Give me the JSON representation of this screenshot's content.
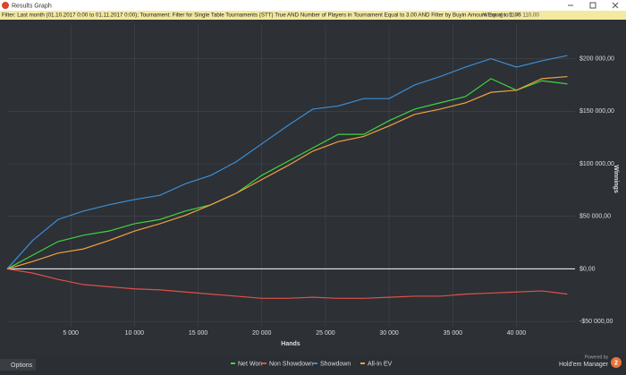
{
  "window": {
    "title": "Results Graph"
  },
  "filter": {
    "text": "Filter: Last month (01.10.2017 0:00 to 01.11.2017 0:00); Tournament: Filter for Single Table Tournaments (STT) True AND Number of Players in Tournament Equal to 3.00 AND Filter by Buyin Amount Equal to 1.00",
    "winnings": "Winnings: $175 110,00"
  },
  "chart_data": {
    "type": "line",
    "x_label": "Hands",
    "y_label": "Winnings",
    "grid": true,
    "x": [
      0,
      2000,
      4000,
      6000,
      8000,
      10000,
      12000,
      14000,
      16000,
      18000,
      20000,
      22000,
      24000,
      26000,
      28000,
      30000,
      32000,
      34000,
      36000,
      38000,
      40000,
      42000,
      44000
    ],
    "series": [
      {
        "name": "Net Won",
        "color": "#3fd43f",
        "values": [
          0,
          13000,
          26000,
          32000,
          36000,
          43000,
          47000,
          55000,
          61000,
          72000,
          89000,
          102000,
          115000,
          128000,
          128000,
          141000,
          152000,
          158000,
          164000,
          181000,
          170000,
          179000,
          176000
        ]
      },
      {
        "name": "Non Showdown",
        "color": "#e0504a",
        "values": [
          0,
          -4000,
          -10000,
          -15000,
          -17000,
          -19000,
          -20000,
          -22000,
          -24000,
          -26000,
          -28000,
          -28000,
          -27000,
          -28000,
          -28000,
          -27000,
          -26000,
          -26000,
          -24000,
          -23000,
          -22000,
          -21000,
          -24000
        ]
      },
      {
        "name": "Showdown",
        "color": "#3a8fd6",
        "values": [
          0,
          27000,
          47000,
          55000,
          61000,
          66000,
          70000,
          81000,
          89000,
          102000,
          119000,
          136000,
          152000,
          155000,
          162000,
          162000,
          175000,
          183000,
          192000,
          200000,
          192000,
          198000,
          203000
        ]
      },
      {
        "name": "All-In EV",
        "color": "#f0a040",
        "values": [
          0,
          7000,
          15000,
          19000,
          27000,
          36000,
          43000,
          51000,
          61000,
          72000,
          85000,
          98000,
          112000,
          121000,
          126000,
          136000,
          147000,
          152000,
          158000,
          168000,
          170000,
          181000,
          183000
        ]
      }
    ],
    "xlim": [
      0,
      44600
    ],
    "xticks": [
      {
        "value": 5000,
        "label": "5 000"
      },
      {
        "value": 10000,
        "label": "10 000"
      },
      {
        "value": 15000,
        "label": "15 000"
      },
      {
        "value": 20000,
        "label": "20 000"
      },
      {
        "value": 25000,
        "label": "25 000"
      },
      {
        "value": 30000,
        "label": "30 000"
      },
      {
        "value": 35000,
        "label": "35 000"
      },
      {
        "value": 40000,
        "label": "40 000"
      }
    ],
    "ylim": [
      -55000,
      232000
    ],
    "yticks": [
      {
        "value": -50000,
        "label": "-$50 000,00"
      },
      {
        "value": 0,
        "label": "$0,00"
      },
      {
        "value": 50000,
        "label": "$50 000,00"
      },
      {
        "value": 100000,
        "label": "$100 000,00"
      },
      {
        "value": 150000,
        "label": "$150 000,00"
      },
      {
        "value": 200000,
        "label": "$200 000,00"
      }
    ]
  },
  "footer": {
    "options": "Options",
    "powered_by": "Powered by",
    "product": "Hold'em Manager",
    "logo": "2"
  }
}
